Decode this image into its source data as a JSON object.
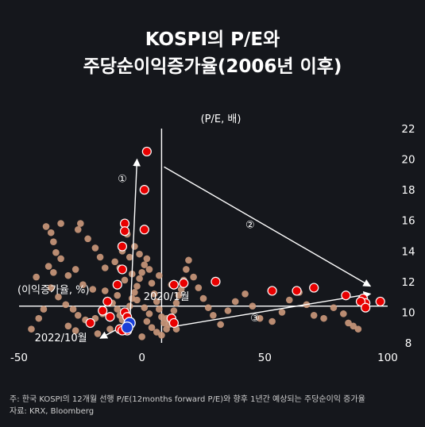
{
  "title_line1": "KOSPI의 P/E와",
  "title_line2": "주당순이익증가율(2006년 이후)",
  "note": "주: 한국 KOSPI의 12개월 선행 P/E(12months forward P/E)와 향후 1년간 예상되는 주당순이익 증가율",
  "source": "자료: KRX, Bloomberg",
  "colors": {
    "background": "#15171c",
    "history_point": "#c9977a",
    "highlight_point": "#e80000",
    "highlight_stroke": "#ffffff",
    "latest_point": "#1a3fd8",
    "axis": "#ffffff"
  },
  "chart_data": {
    "type": "scatter",
    "xlabel": "(이익증가율, %)",
    "ylabel": "(P/E, 배)",
    "xlim": [
      -50,
      100
    ],
    "ylim": [
      8,
      22
    ],
    "x_ticks": [
      "-50",
      "0",
      "50",
      "100"
    ],
    "y_ticks": [
      "22",
      "20",
      "18",
      "16",
      "14",
      "12",
      "10",
      "8"
    ],
    "grid": false,
    "series": [
      {
        "role": "history",
        "points": [
          [
            -39,
            15.6
          ],
          [
            -37,
            15.2
          ],
          [
            -33,
            15.8
          ],
          [
            -26,
            15.4
          ],
          [
            -25,
            15.8
          ],
          [
            -36,
            14.6
          ],
          [
            -35,
            13.9
          ],
          [
            -33,
            13.5
          ],
          [
            -38,
            13.0
          ],
          [
            -36,
            12.6
          ],
          [
            -30,
            12.4
          ],
          [
            -27,
            12.8
          ],
          [
            -24,
            11.8
          ],
          [
            -20,
            11.5
          ],
          [
            -34,
            11.0
          ],
          [
            -31,
            10.5
          ],
          [
            -28,
            10.2
          ],
          [
            -26,
            9.8
          ],
          [
            -23,
            9.5
          ],
          [
            -21,
            9.2
          ],
          [
            -19,
            9.6
          ],
          [
            -16,
            9.9
          ],
          [
            -15,
            11.4
          ],
          [
            -14,
            10.8
          ],
          [
            -12,
            10.6
          ],
          [
            -10,
            10.2
          ],
          [
            -9,
            9.8
          ],
          [
            -8,
            9.5
          ],
          [
            -6,
            9.8
          ],
          [
            -5,
            10.4
          ],
          [
            -4,
            10.9
          ],
          [
            -3,
            11.3
          ],
          [
            -2,
            11.7
          ],
          [
            -1,
            12.2
          ],
          [
            0,
            12.6
          ],
          [
            1,
            13.1
          ],
          [
            2,
            13.5
          ],
          [
            3,
            12.8
          ],
          [
            4,
            11.9
          ],
          [
            5,
            11.2
          ],
          [
            6,
            10.7
          ],
          [
            7,
            10.2
          ],
          [
            8,
            9.7
          ],
          [
            9,
            9.3
          ],
          [
            10,
            8.9
          ],
          [
            11,
            9.2
          ],
          [
            12,
            9.6
          ],
          [
            13,
            10.1
          ],
          [
            14,
            10.6
          ],
          [
            15,
            11.1
          ],
          [
            16,
            11.5
          ],
          [
            17,
            12.1
          ],
          [
            18,
            12.8
          ],
          [
            19,
            13.4
          ],
          [
            -7,
            12.1
          ],
          [
            -9,
            12.9
          ],
          [
            -11,
            13.3
          ],
          [
            -8,
            14.0
          ],
          [
            -5,
            13.6
          ],
          [
            -3,
            14.3
          ],
          [
            -1,
            13.8
          ],
          [
            2,
            9.4
          ],
          [
            4,
            9.0
          ],
          [
            6,
            8.7
          ],
          [
            8,
            8.5
          ],
          [
            10,
            9.6
          ],
          [
            3,
            9.9
          ],
          [
            1,
            10.3
          ],
          [
            -2,
            10.8
          ],
          [
            21,
            12.3
          ],
          [
            23,
            11.6
          ],
          [
            25,
            10.9
          ],
          [
            27,
            10.3
          ],
          [
            29,
            9.8
          ],
          [
            32,
            9.2
          ],
          [
            35,
            10.1
          ],
          [
            38,
            10.7
          ],
          [
            42,
            11.2
          ],
          [
            45,
            10.4
          ],
          [
            48,
            9.6
          ],
          [
            53,
            9.4
          ],
          [
            57,
            10.0
          ],
          [
            60,
            10.8
          ],
          [
            64,
            11.3
          ],
          [
            67,
            10.5
          ],
          [
            70,
            9.8
          ],
          [
            74,
            9.6
          ],
          [
            78,
            10.3
          ],
          [
            82,
            9.9
          ],
          [
            84,
            9.3
          ],
          [
            86,
            9.1
          ],
          [
            88,
            8.9
          ],
          [
            -45,
            8.9
          ],
          [
            -42,
            9.6
          ],
          [
            -40,
            10.2
          ],
          [
            -30,
            9.1
          ],
          [
            -27,
            8.8
          ],
          [
            -18,
            8.6
          ],
          [
            -13,
            8.9
          ],
          [
            0,
            8.4
          ],
          [
            14,
            8.9
          ],
          [
            -22,
            14.8
          ],
          [
            -19,
            14.2
          ],
          [
            -6,
            15.1
          ],
          [
            -4,
            12.5
          ],
          [
            -15,
            12.9
          ],
          [
            -17,
            13.6
          ],
          [
            12,
            11.8
          ],
          [
            7,
            12.4
          ],
          [
            -10,
            11.1
          ],
          [
            -43,
            12.3
          ],
          [
            -37,
            11.6
          ]
        ]
      },
      {
        "role": "highlight",
        "points": [
          [
            2,
            20.5
          ],
          [
            1,
            18.0
          ],
          [
            -7,
            15.8
          ],
          [
            -7,
            15.3
          ],
          [
            1,
            15.4
          ],
          [
            -8,
            14.3
          ],
          [
            -8,
            12.8
          ],
          [
            -10,
            11.8
          ],
          [
            13,
            11.8
          ],
          [
            17,
            11.9
          ],
          [
            30,
            12.0
          ],
          [
            53,
            11.4
          ],
          [
            63,
            11.4
          ],
          [
            70,
            11.6
          ],
          [
            83,
            11.1
          ],
          [
            90,
            10.9
          ],
          [
            91,
            10.6
          ],
          [
            89,
            10.7
          ],
          [
            97,
            10.7
          ],
          [
            91,
            10.3
          ],
          [
            -14,
            10.7
          ],
          [
            -16,
            10.1
          ],
          [
            -7,
            10.0
          ],
          [
            -6,
            9.7
          ],
          [
            12,
            9.6
          ],
          [
            13,
            9.3
          ],
          [
            -21,
            9.3
          ],
          [
            -13,
            9.7
          ],
          [
            -9,
            8.9
          ],
          [
            -6,
            8.8
          ],
          [
            -8,
            8.8
          ]
        ]
      },
      {
        "role": "latest",
        "points": [
          [
            -5,
            9.3
          ],
          [
            -6,
            9.0
          ]
        ]
      }
    ],
    "arrows": [
      {
        "label": "①",
        "from": [
          -5,
          8.9
        ],
        "to": [
          -2,
          20.0
        ]
      },
      {
        "label": "②",
        "from": [
          9,
          19.5
        ],
        "to": [
          93,
          11.7
        ]
      },
      {
        "label": "③",
        "from": [
          14,
          9.1
        ],
        "to": [
          93,
          11.2
        ]
      },
      {
        "label": "",
        "from": [
          -3,
          9.5
        ],
        "to": [
          -17,
          8.3
        ]
      }
    ],
    "annotations": [
      {
        "text": "①",
        "x": -8,
        "y": 18.5
      },
      {
        "text": "②",
        "x": 44,
        "y": 15.5
      },
      {
        "text": "③",
        "x": 46,
        "y": 9.4
      },
      {
        "text": "2020/1월",
        "x": 10,
        "y": 10.8
      },
      {
        "text": "2022/10월",
        "x": -33,
        "y": 8.1
      }
    ]
  }
}
